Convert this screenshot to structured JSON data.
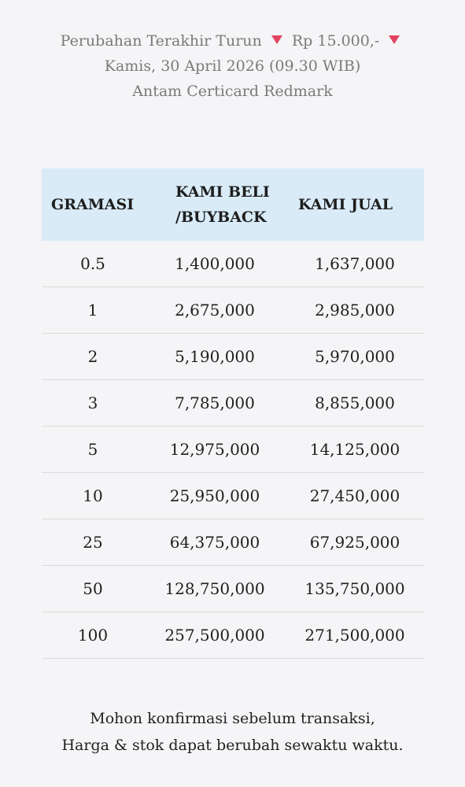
{
  "info": {
    "change_label": "Perubahan Terakhir Turun",
    "change_amount": "Rp 15.000,-",
    "date": "Kamis, 30 April 2026 (09.30 WIB)",
    "product": "Antam Certicard Redmark"
  },
  "icons": {
    "trend": "triangle-down-icon",
    "trend_color": "#e2435f"
  },
  "table": {
    "headers": {
      "gramasi": "GRAMASI",
      "beli_line1": "KAMI BELI",
      "beli_line2": "/BUYBACK",
      "jual": "KAMI JUAL"
    },
    "rows": [
      {
        "gramasi": "0.5",
        "beli": "1,400,000",
        "jual": "1,637,000"
      },
      {
        "gramasi": "1",
        "beli": "2,675,000",
        "jual": "2,985,000"
      },
      {
        "gramasi": "2",
        "beli": "5,190,000",
        "jual": "5,970,000"
      },
      {
        "gramasi": "3",
        "beli": "7,785,000",
        "jual": "8,855,000"
      },
      {
        "gramasi": "5",
        "beli": "12,975,000",
        "jual": "14,125,000"
      },
      {
        "gramasi": "10",
        "beli": "25,950,000",
        "jual": "27,450,000"
      },
      {
        "gramasi": "25",
        "beli": "64,375,000",
        "jual": "67,925,000"
      },
      {
        "gramasi": "50",
        "beli": "128,750,000",
        "jual": "135,750,000"
      },
      {
        "gramasi": "100",
        "beli": "257,500,000",
        "jual": "271,500,000"
      }
    ]
  },
  "footer": {
    "line1": "Mohon konfirmasi sebelum transaksi,",
    "line2": "Harga & stok dapat berubah sewaktu waktu."
  },
  "colors": {
    "background": "#f5f4f6",
    "header_bg": "#d9ebf7",
    "muted_text": "#7a7a7a"
  }
}
